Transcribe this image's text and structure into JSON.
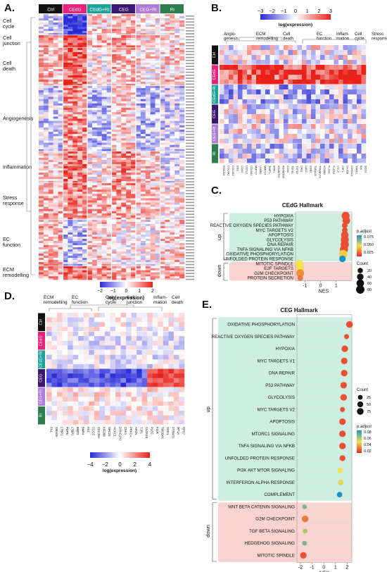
{
  "panels": {
    "A": "A.",
    "B": "B.",
    "C": "C.",
    "D": "D.",
    "E": "E."
  },
  "colors": {
    "ctrl": "#111111",
    "cedg": "#e8227a",
    "cedg_ri": "#1aa39a",
    "ceg": "#3b1670",
    "ceg_ri": "#b07ad8",
    "ri": "#2e7d4f",
    "up_box": "#cdeee0",
    "down_box": "#f9d3cf"
  },
  "panelA": {
    "groups": [
      "Ctrl",
      "CEdG",
      "CEdG+Ri",
      "CEG",
      "CEG+Ri",
      "Ri"
    ],
    "row_sections": [
      "Cell\ncycle",
      "Cell\njunction",
      "Cell\ndeath",
      "Angiogenesis",
      "Inflammation",
      "Stress\nresponse",
      "EC\nfunction",
      "ECM\nremodelling"
    ],
    "legend_ticks": [
      "−2",
      "−1",
      "0",
      "1",
      "2"
    ],
    "legend_label": "log(expression)"
  },
  "panelB": {
    "legend_ticks": [
      "−3",
      "−2",
      "−1",
      "0",
      "1",
      "2",
      "3"
    ],
    "legend_label": "log(expression)",
    "col_sections": [
      "Angio-\ngenesis",
      "ECM\nremodelling",
      "Cell\ndeath",
      "EC\nfunction",
      "Inflam-\nmation",
      "Cell\ncycle",
      "Stress\nresponse"
    ],
    "row_labels": [
      "Ctrl",
      "CEdG",
      "CEdG+Ri",
      "CEG",
      "CEG+Ri",
      "Ri"
    ],
    "genes": [
      "EMILIN1",
      "COL4A1",
      "COL4A2",
      "ENG",
      "CD34",
      "LOXL2",
      "COL5A1",
      "MMP17",
      "LAMB2",
      "MMP14",
      "TIMP1",
      "BMP1",
      "ADAMTS1",
      "ADAMTS9",
      "CD40",
      "TGFB1",
      "TGFB2",
      "CAV1",
      "CAV2",
      "ESM1",
      "TUBA1B",
      "TMEM173",
      "VCAM1",
      "PLCB1",
      "PLCB2",
      "CCL2",
      "CSF1",
      "DHX58",
      "CDKN1A",
      "TRAF1",
      "BIK",
      "SOD2"
    ]
  },
  "panelC": {
    "title": "CEdG Hallmark",
    "up_label": "up",
    "down_label": "down",
    "xlabel": "NES",
    "x_ticks": [
      "-1",
      "0",
      "1"
    ],
    "padj_label": "p.adjust",
    "padj_ticks": [
      "0.075",
      "0.050",
      "0.025"
    ],
    "count_label": "Count",
    "count_ticks": [
      "20",
      "40",
      "60",
      "80"
    ]
  },
  "panelD": {
    "col_sections": [
      "ECM\nremodelling",
      "EC\nfunction",
      "Cell\ncycle",
      "Cell\njunction",
      "Inflam-\nmation",
      "Cell\ndeath"
    ],
    "row_labels": [
      "Ctrl",
      "CEdG",
      "CEdG+Ri",
      "CEG",
      "CEG+Ri",
      "Ri"
    ],
    "genes": [
      "FN1",
      "SMAD6",
      "LTBP1",
      "PDPN",
      "LTBP2",
      "BMP2",
      "BMP4",
      "FN1",
      "CLIC3",
      "CDC25A",
      "KIF20B",
      "SPC24",
      "HCFC1",
      "DYNC1H1",
      "CDK1",
      "PRKCA",
      "AFDN",
      "TJP1",
      "CLDN15",
      "PLEC",
      "F11R",
      "TMSB4X",
      "SOD1",
      "PTRMT1",
      "MT1A",
      "RPS7"
    ],
    "legend_ticks": [
      "−4",
      "−2",
      "0",
      "2",
      "4"
    ],
    "legend_label": "log(expression)"
  },
  "panelE": {
    "title": "CEG Hallmark",
    "up_label": "up",
    "down_label": "down",
    "xlabel": "NES",
    "x_ticks": [
      "-2",
      "-1",
      "0",
      "1",
      "2"
    ],
    "count_label": "Count",
    "count_ticks": [
      "25",
      "50",
      "75"
    ],
    "padj_label": "p.adjust",
    "padj_ticks": [
      "0.08",
      "0.06",
      "0.04",
      "0.02"
    ]
  },
  "chart_data": [
    {
      "type": "scatter",
      "title": "CEdG Hallmark",
      "xlabel": "NES",
      "xlim": [
        -1.6,
        2.0
      ],
      "categories": [
        "HYPOXIA",
        "P53 PATHWAY",
        "REACTIVE OXYGEN SPECIES PATHWAY",
        "MYC TARGETS V2",
        "APOPTOSIS",
        "GLYCOLYSIS",
        "DNA REPAIR",
        "TNFA SIGNALING VIA NFKB",
        "OXIDATIVE PHOSPHORYLATION",
        "UNFOLDED PROTEIN RESPONSE",
        "MITOTIC SPINDLE",
        "E2F TARGETS",
        "G2M CHECKPOINT",
        "PROTEIN SECRETION"
      ],
      "nes": [
        1.6,
        1.65,
        1.55,
        1.55,
        1.55,
        1.55,
        1.55,
        1.5,
        1.45,
        1.4,
        -1.35,
        -1.3,
        -1.3,
        -1.3
      ],
      "p_adjust": [
        0.01,
        0.01,
        0.01,
        0.01,
        0.01,
        0.01,
        0.01,
        0.01,
        0.04,
        0.09,
        0.045,
        0.045,
        0.025,
        0.02
      ],
      "count": [
        70,
        60,
        25,
        25,
        60,
        70,
        75,
        75,
        80,
        40,
        65,
        65,
        65,
        25
      ],
      "direction": [
        "up",
        "up",
        "up",
        "up",
        "up",
        "up",
        "up",
        "up",
        "up",
        "up",
        "down",
        "down",
        "down",
        "down"
      ]
    },
    {
      "type": "scatter",
      "title": "CEG Hallmark",
      "xlabel": "NES",
      "xlim": [
        -2.3,
        2.4
      ],
      "categories": [
        "OXIDATIVE PHOSPHORYLATION",
        "REACTIVE OXYGEN SPECIES PATHWAY",
        "HYPOXIA",
        "MYC TARGETS V1",
        "DNA REPAIR",
        "P53 PATHWAY",
        "GLYCOLYSIS",
        "MYC TARGETS V2",
        "APOPTOSIS",
        "MTORC1 SIGNALING",
        "TNFA SIGNALING VIA NFKB",
        "UNFOLDED PROTEIN RESPONSE",
        "PI3K AKT MTOR SIGNALING",
        "INTERFERON ALPHA RESPONSE",
        "COMPLEMENT",
        "WNT BETA CATENIN SIGNALING",
        "G2M CHECKPOINT",
        "TGF BETA SIGNALING",
        "HEDGEHOG SIGNALING",
        "MITOTIC SPINDLE"
      ],
      "nes": [
        2.2,
        1.95,
        1.8,
        1.75,
        1.75,
        1.7,
        1.7,
        1.6,
        1.6,
        1.6,
        1.6,
        1.6,
        1.4,
        1.45,
        1.35,
        -1.65,
        -1.6,
        -1.6,
        -1.65,
        -1.75
      ],
      "p_adjust": [
        0.01,
        0.01,
        0.01,
        0.01,
        0.01,
        0.01,
        0.01,
        0.01,
        0.01,
        0.01,
        0.01,
        0.01,
        0.045,
        0.05,
        0.09,
        0.07,
        0.02,
        0.06,
        0.07,
        0.01
      ],
      "count": [
        75,
        30,
        70,
        70,
        70,
        70,
        70,
        30,
        70,
        70,
        70,
        50,
        40,
        40,
        40,
        20,
        70,
        25,
        25,
        70
      ],
      "direction": [
        "up",
        "up",
        "up",
        "up",
        "up",
        "up",
        "up",
        "up",
        "up",
        "up",
        "up",
        "up",
        "up",
        "up",
        "up",
        "down",
        "down",
        "down",
        "down",
        "down"
      ]
    }
  ]
}
